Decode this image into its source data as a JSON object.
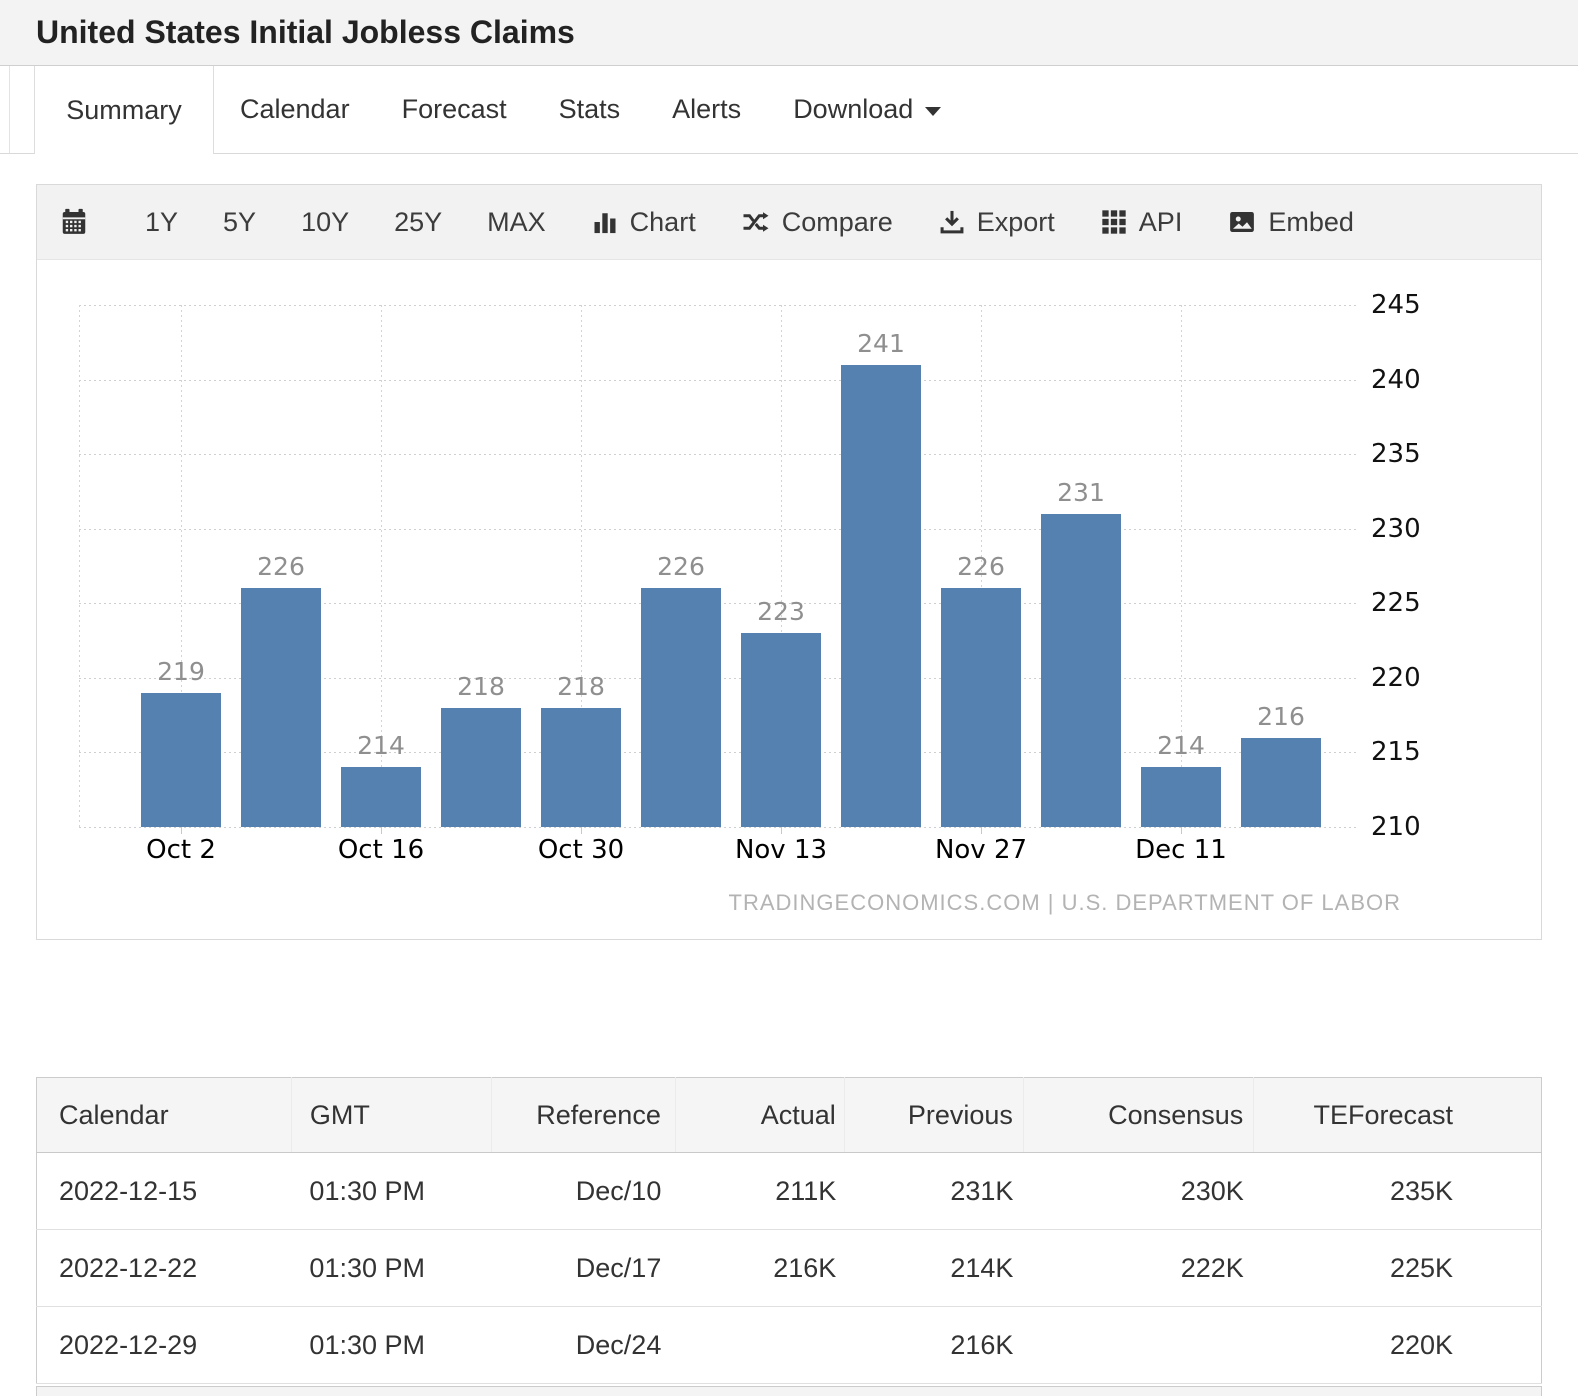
{
  "page": {
    "title": "United States Initial Jobless Claims"
  },
  "tabs": [
    {
      "label": "Summary",
      "active": true
    },
    {
      "label": "Calendar",
      "active": false
    },
    {
      "label": "Forecast",
      "active": false
    },
    {
      "label": "Stats",
      "active": false
    },
    {
      "label": "Alerts",
      "active": false
    },
    {
      "label": "Download",
      "active": false
    }
  ],
  "toolbar": {
    "items": [
      {
        "label": "1Y"
      },
      {
        "label": "5Y"
      },
      {
        "label": "10Y"
      },
      {
        "label": "25Y"
      },
      {
        "label": "MAX"
      },
      {
        "label": "Chart",
        "icon": "bar-chart-icon"
      },
      {
        "label": "Compare",
        "icon": "shuffle-icon"
      },
      {
        "label": "Export",
        "icon": "download-icon"
      },
      {
        "label": "API",
        "icon": "grid-icon"
      },
      {
        "label": "Embed",
        "icon": "image-icon"
      }
    ]
  },
  "chart_data": {
    "type": "bar",
    "title": "United States Initial Jobless Claims",
    "values": [
      219,
      226,
      214,
      218,
      218,
      226,
      223,
      241,
      226,
      231,
      214,
      216
    ],
    "x_tick_labels": [
      "Oct 2",
      "Oct 16",
      "Oct 30",
      "Nov 13",
      "Nov 27",
      "Dec 11"
    ],
    "x_tick_bar_indexes": [
      0,
      2,
      4,
      6,
      8,
      10
    ],
    "yticks": [
      210,
      215,
      220,
      225,
      230,
      235,
      240,
      245
    ],
    "ylim": [
      210,
      245
    ],
    "ytick_step": 5,
    "grid": "dotted",
    "legend": "none",
    "bar_color": "#5581b1",
    "value_label_color": "#8f8f8f",
    "watermark": "TRADINGECONOMICS.COM | U.S. DEPARTMENT OF LABOR"
  },
  "table": {
    "columns": [
      "Calendar",
      "GMT",
      "Reference",
      "Actual",
      "Previous",
      "Consensus",
      "TEForecast"
    ],
    "rows": [
      [
        "2022-12-15",
        "01:30 PM",
        "Dec/10",
        "211K",
        "231K",
        "230K",
        "235K"
      ],
      [
        "2022-12-22",
        "01:30 PM",
        "Dec/17",
        "216K",
        "214K",
        "222K",
        "225K"
      ],
      [
        "2022-12-29",
        "01:30 PM",
        "Dec/24",
        "",
        "216K",
        "",
        "220K"
      ]
    ]
  },
  "colors": {
    "bar": "#5581b1",
    "toolbar_bg": "#f2f2f2",
    "header_bg": "#f3f3f3",
    "table_header_bg": "#f5f5f5"
  }
}
